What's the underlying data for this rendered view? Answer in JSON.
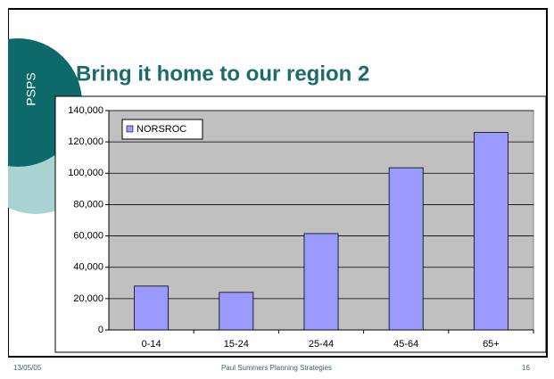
{
  "side_label": "PSPS",
  "footer": {
    "date": "13/05/05",
    "presenter": "Paul Summers Planning Strategies",
    "page": "16"
  },
  "chart_data": {
    "type": "bar",
    "title": "Bring it home to our region 2",
    "categories": [
      "0-14",
      "15-24",
      "25-44",
      "45-64",
      "65+"
    ],
    "series": [
      {
        "name": "NORSROC",
        "color": "#9999ff",
        "values": [
          28000,
          24000,
          61500,
          103500,
          126000
        ]
      }
    ],
    "ylim": [
      0,
      140000
    ],
    "yticks": [
      0,
      {
        "value": 20000,
        "label": "20,000"
      },
      {
        "value": 40000,
        "label": "40,000"
      },
      {
        "value": 60000,
        "label": "60,000"
      },
      {
        "value": 80000,
        "label": "80,000"
      },
      {
        "value": 100000,
        "label": "100,000"
      },
      {
        "value": 120000,
        "label": "120,000"
      },
      {
        "value": 140000,
        "label": "140,000"
      }
    ],
    "grid": true,
    "legend": "top-left",
    "plot_background": "#c0c0c0"
  }
}
